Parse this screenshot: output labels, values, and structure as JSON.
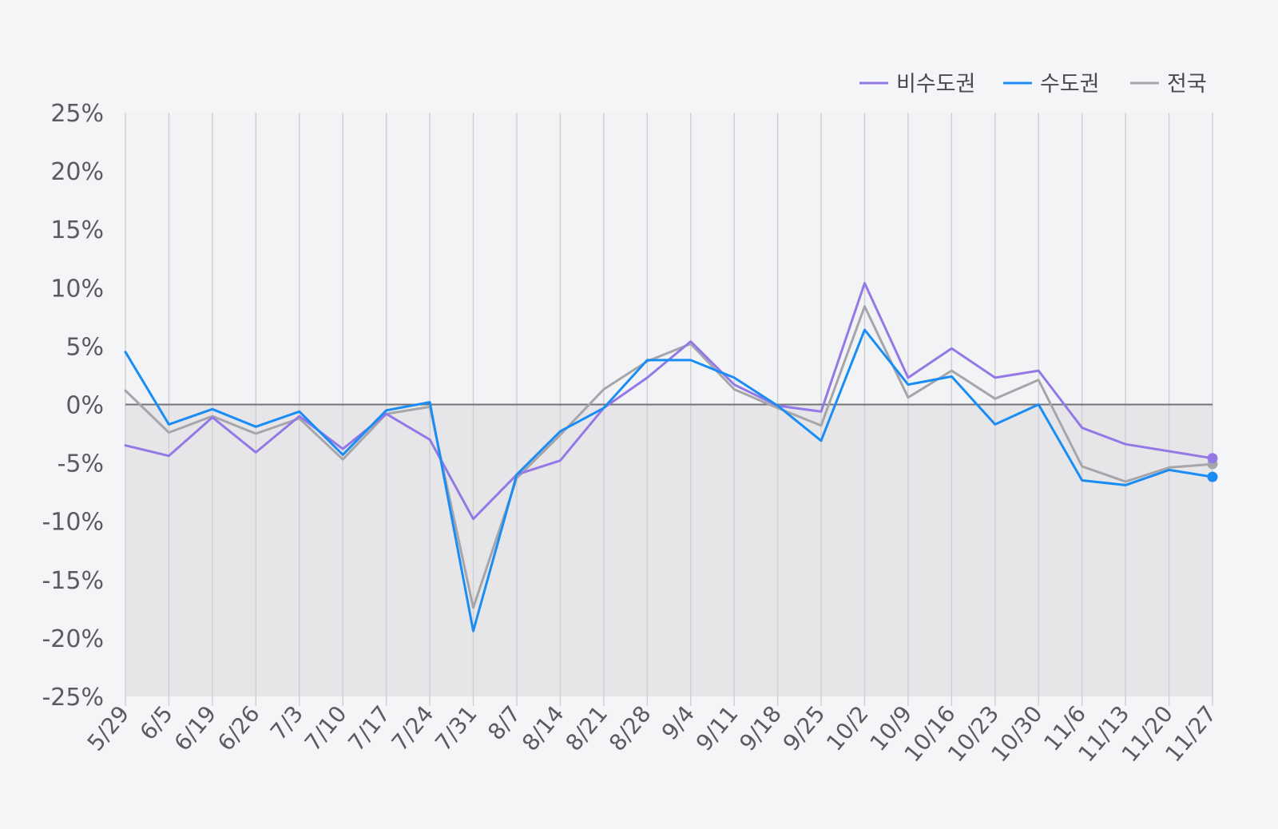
{
  "chart_data": {
    "type": "line",
    "title": "",
    "xlabel": "",
    "ylabel": "",
    "ylim": [
      -25,
      25
    ],
    "y_ticks": [
      25,
      20,
      15,
      10,
      5,
      0,
      -5,
      -10,
      -15,
      -20,
      -25
    ],
    "y_tick_format": "%",
    "grid": "vertical",
    "negative_region_shaded": true,
    "legend_position": "top-right",
    "categories": [
      "5/29",
      "6/5",
      "6/19",
      "6/26",
      "7/3",
      "7/10",
      "7/17",
      "7/24",
      "7/31",
      "8/7",
      "8/14",
      "8/21",
      "8/28",
      "9/4",
      "9/11",
      "9/18",
      "9/25",
      "10/2",
      "10/9",
      "10/16",
      "10/23",
      "10/30",
      "11/6",
      "11/13",
      "11/20",
      "11/27"
    ],
    "series": [
      {
        "name": "비수도권",
        "color": "#9479e6",
        "values": [
          -3.5,
          -4.4,
          -1.1,
          -4.1,
          -1.0,
          -3.8,
          -0.8,
          -3.0,
          -9.8,
          -6.0,
          -4.8,
          -0.3,
          2.3,
          5.4,
          1.7,
          -0.1,
          -0.6,
          10.4,
          2.3,
          4.8,
          2.3,
          2.9,
          -2.0,
          -3.4,
          -4.0,
          -4.6
        ]
      },
      {
        "name": "수도권",
        "color": "#1a8df4",
        "values": [
          4.5,
          -1.7,
          -0.4,
          -1.9,
          -0.6,
          -4.3,
          -0.5,
          0.2,
          -19.4,
          -6.0,
          -2.3,
          -0.3,
          3.8,
          3.8,
          2.3,
          -0.1,
          -3.1,
          6.4,
          1.7,
          2.4,
          -1.7,
          0.0,
          -6.5,
          -6.9,
          -5.6,
          -6.2
        ]
      },
      {
        "name": "전국",
        "color": "#a6a6aa",
        "values": [
          1.2,
          -2.4,
          -1.0,
          -2.5,
          -1.2,
          -4.7,
          -0.8,
          -0.2,
          -17.4,
          -6.3,
          -2.6,
          1.3,
          3.7,
          5.2,
          1.3,
          -0.3,
          -1.8,
          8.4,
          0.6,
          2.9,
          0.5,
          2.1,
          -5.3,
          -6.6,
          -5.4,
          -5.1
        ]
      }
    ]
  }
}
